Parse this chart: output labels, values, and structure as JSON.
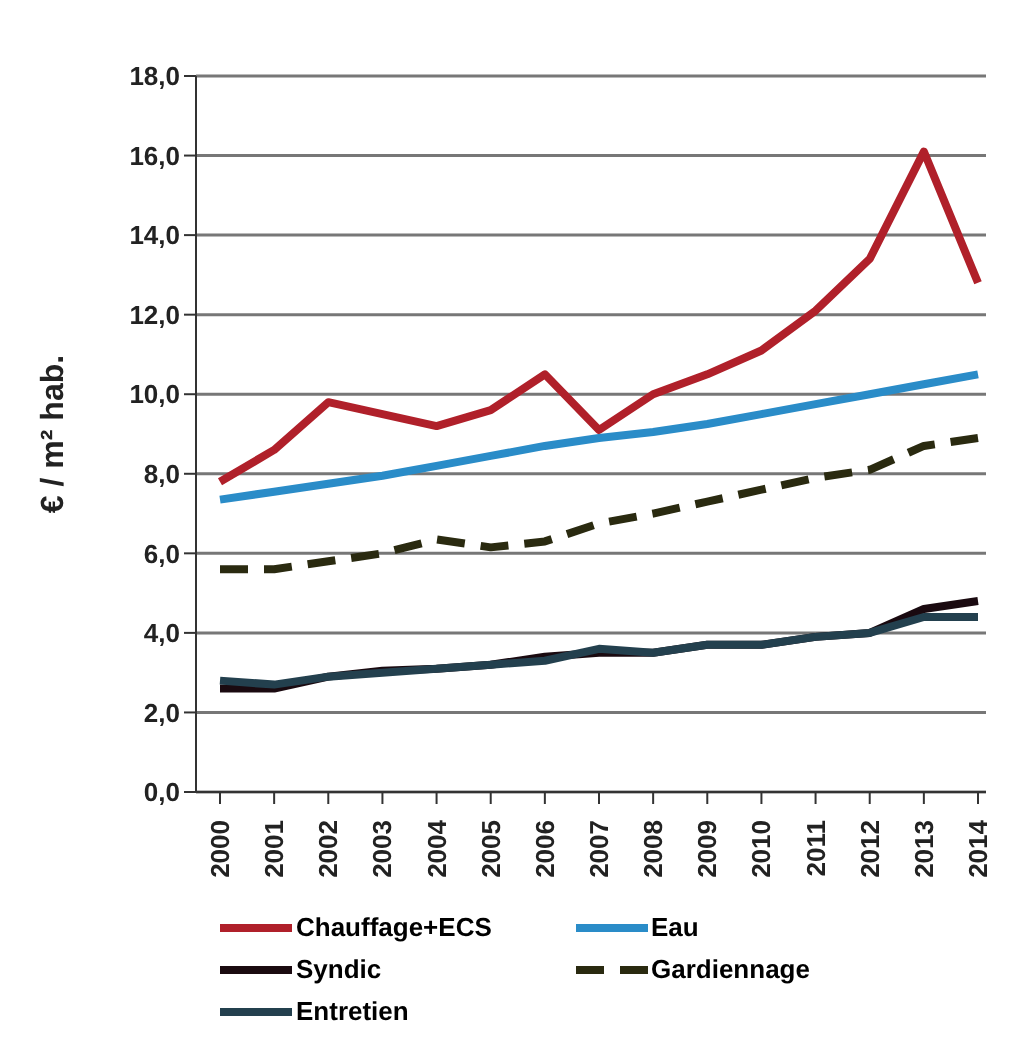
{
  "chart_data": {
    "type": "line",
    "ylabel": "€ / m² hab.",
    "categories": [
      "2000",
      "2001",
      "2002",
      "2003",
      "2004",
      "2005",
      "2006",
      "2007",
      "2008",
      "2009",
      "2010",
      "2011",
      "2012",
      "2013",
      "2014"
    ],
    "series": [
      {
        "name": "Chauffage+ECS",
        "color": "#b0202a",
        "values": [
          7.8,
          8.6,
          9.8,
          9.5,
          9.2,
          9.6,
          10.5,
          9.1,
          10.0,
          10.5,
          11.1,
          12.1,
          13.4,
          16.1,
          12.8
        ]
      },
      {
        "name": "Eau",
        "color": "#2a8cc8",
        "values": [
          7.35,
          7.55,
          7.75,
          7.95,
          8.2,
          8.45,
          8.7,
          8.9,
          9.05,
          9.25,
          9.5,
          9.75,
          10.0,
          10.25,
          10.5
        ]
      },
      {
        "name": "Syndic",
        "color": "#1a0a10",
        "values": [
          2.6,
          2.6,
          2.9,
          3.05,
          3.1,
          3.2,
          3.4,
          3.5,
          3.5,
          3.7,
          3.7,
          3.9,
          4.0,
          4.6,
          4.8
        ]
      },
      {
        "name": "Gardiennage",
        "color": "#2a2a10",
        "line_style": "dashed",
        "values": [
          5.6,
          5.6,
          5.8,
          6.0,
          6.35,
          6.15,
          6.3,
          6.75,
          7.0,
          7.3,
          7.6,
          7.9,
          8.1,
          8.7,
          8.9
        ]
      },
      {
        "name": "Entretien",
        "color": "#23404e",
        "values": [
          2.8,
          2.7,
          2.9,
          3.0,
          3.1,
          3.2,
          3.3,
          3.6,
          3.5,
          3.7,
          3.7,
          3.9,
          4.0,
          4.4,
          4.4
        ]
      }
    ],
    "ylim": [
      0,
      18
    ],
    "yticks": [
      {
        "value": 0,
        "label": "0,0"
      },
      {
        "value": 2,
        "label": "2,0"
      },
      {
        "value": 4,
        "label": "4,0"
      },
      {
        "value": 6,
        "label": "6,0"
      },
      {
        "value": 8,
        "label": "8,0"
      },
      {
        "value": 10,
        "label": "10,0"
      },
      {
        "value": 12,
        "label": "12,0"
      },
      {
        "value": 14,
        "label": "14,0"
      },
      {
        "value": 16,
        "label": "16,0"
      },
      {
        "value": 18,
        "label": "18,0"
      }
    ],
    "grid": "y",
    "legend": "bottom",
    "marker": "none",
    "line_style": "solid"
  }
}
